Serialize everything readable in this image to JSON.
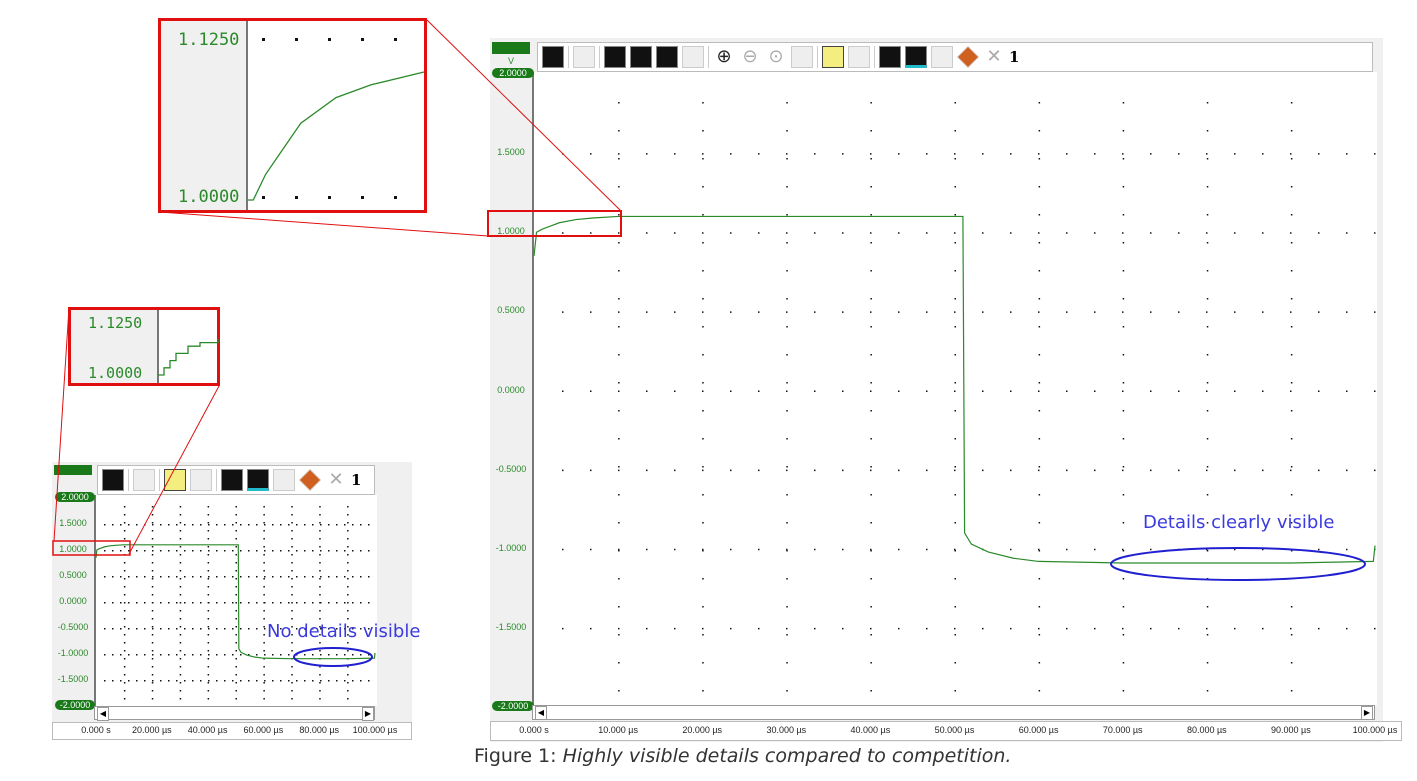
{
  "caption": {
    "prefix": "Figure 1: ",
    "text": "Highly visible details compared to competition."
  },
  "annotations": {
    "main": "Details clearly visible",
    "small": "No details visible"
  },
  "colors": {
    "trace": "#2a8a2a",
    "highlight": "#e01010",
    "ellipse": "#2020d0",
    "axis_badge": "#1a7a1a"
  },
  "main_scope": {
    "unit_label": "V",
    "toolbar_icons": [
      "trigger-icon",
      "channel-layout-icon",
      "table-icon",
      "rise-measure-icon",
      "amplitude-icon",
      "disabled-grid-icon",
      "zoom-in-icon",
      "zoom-out-icon",
      "zoom-fit-icon",
      "hide-eye-icon",
      "note-icon",
      "disabled-link-icon",
      "channels-icon",
      "waveform-icon",
      "resize-icon",
      "eraser-icon",
      "close-icon"
    ],
    "close_count": "1"
  },
  "small_scope": {
    "toolbar_icons": [
      "trigger-icon",
      "channel-layout-icon",
      "note-icon",
      "disabled-link-icon",
      "channels-icon",
      "waveform-icon",
      "resize-icon",
      "eraser-icon",
      "close-icon"
    ],
    "close_count": "1"
  },
  "chart_data": [
    {
      "type": "line",
      "title": "",
      "y_unit": "V",
      "ylim": [
        -2,
        2
      ],
      "xlim": [
        0,
        100
      ],
      "grid": true,
      "y_ticks": [
        "2.0000",
        "1.5000",
        "1.0000",
        "0.5000",
        "0.0000",
        "-0.5000",
        "-1.0000",
        "-1.5000",
        "-2.0000"
      ],
      "x_ticks": [
        "0.000 s",
        "10.000 µs",
        "20.000 µs",
        "30.000 µs",
        "40.000 µs",
        "50.000 µs",
        "60.000 µs",
        "70.000 µs",
        "80.000 µs",
        "90.000 µs",
        "100.000 µs"
      ],
      "series": [
        {
          "x_us": [
            0,
            0.3,
            1,
            2,
            3,
            5,
            7,
            10,
            20,
            30,
            40,
            51,
            51.2,
            52,
            54,
            57,
            60,
            70,
            80,
            90,
            99.8,
            100
          ],
          "y_v": [
            0.85,
            1.0,
            1.02,
            1.04,
            1.06,
            1.08,
            1.09,
            1.1,
            1.1,
            1.1,
            1.1,
            1.1,
            -0.9,
            -0.97,
            -1.02,
            -1.06,
            -1.08,
            -1.09,
            -1.09,
            -1.09,
            -1.08,
            -0.98
          ]
        }
      ]
    },
    {
      "type": "line",
      "ylim": [
        -2,
        2
      ],
      "xlim": [
        0,
        100
      ],
      "y_ticks": [
        "2.0000",
        "1.5000",
        "1.0000",
        "0.5000",
        "0.0000",
        "-0.5000",
        "-1.0000",
        "-1.5000",
        "-2.0000"
      ],
      "x_ticks": [
        "0.000 s",
        "20.000 µs",
        "40.000 µs",
        "60.000 µs",
        "80.000 µs",
        "100.000 µs"
      ]
    }
  ],
  "insets": {
    "large": {
      "top": "1.1250",
      "bottom": "1.0000"
    },
    "small": {
      "top": "1.1250",
      "bottom": "1.0000"
    }
  }
}
